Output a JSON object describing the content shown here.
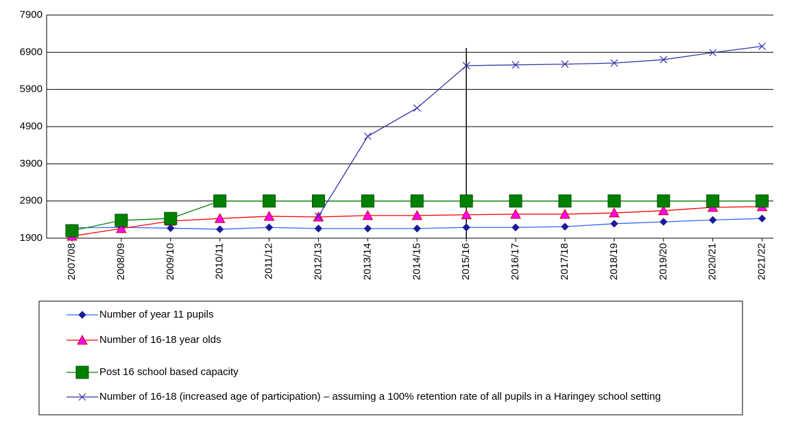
{
  "chart_data": {
    "type": "line",
    "categories": [
      "2007/08",
      "2008/09",
      "2009/10",
      "2010/11",
      "2011/12",
      "2012/13",
      "2013/14",
      "2014/15",
      "2015/16",
      "2016/17",
      "2017/18",
      "2018/19",
      "2019/20",
      "2020/21",
      "2021/22"
    ],
    "series": [
      {
        "name": "Number of year 11 pupils",
        "color": "#3366ff",
        "marker": "diamond",
        "marker_color": "#1a1a99",
        "values": [
          2180,
          2190,
          2170,
          2140,
          2190,
          2160,
          2160,
          2160,
          2190,
          2190,
          2210,
          2290,
          2340,
          2390,
          2430
        ]
      },
      {
        "name": "Number of 16-18 year olds",
        "color": "#ff0000",
        "marker": "triangle",
        "marker_color": "#ff00ff",
        "values": [
          1955,
          2160,
          2360,
          2430,
          2490,
          2470,
          2510,
          2510,
          2530,
          2545,
          2545,
          2580,
          2640,
          2730,
          2750
        ]
      },
      {
        "name": "Post 16 school based capacity",
        "color": "#008000",
        "marker": "square",
        "marker_color": "#008000",
        "values": [
          2100,
          2380,
          2430,
          2900,
          2900,
          2900,
          2900,
          2900,
          2900,
          2900,
          2900,
          2900,
          2900,
          2900,
          2900
        ]
      },
      {
        "name": "Number of 16-18 (increased age of participation) – assuming a 100% retention rate of all pupils in a Haringey school setting",
        "color": "#3333aa",
        "marker": "x",
        "marker_color": "#3333aa",
        "values": [
          null,
          null,
          null,
          null,
          null,
          2490,
          4640,
          5400,
          6540,
          6560,
          6580,
          6610,
          6700,
          6890,
          7060
        ]
      }
    ],
    "ylim": [
      1900,
      7900
    ],
    "yticks": [
      1900,
      2900,
      3900,
      4900,
      5900,
      6900,
      7900
    ],
    "grid": true
  }
}
